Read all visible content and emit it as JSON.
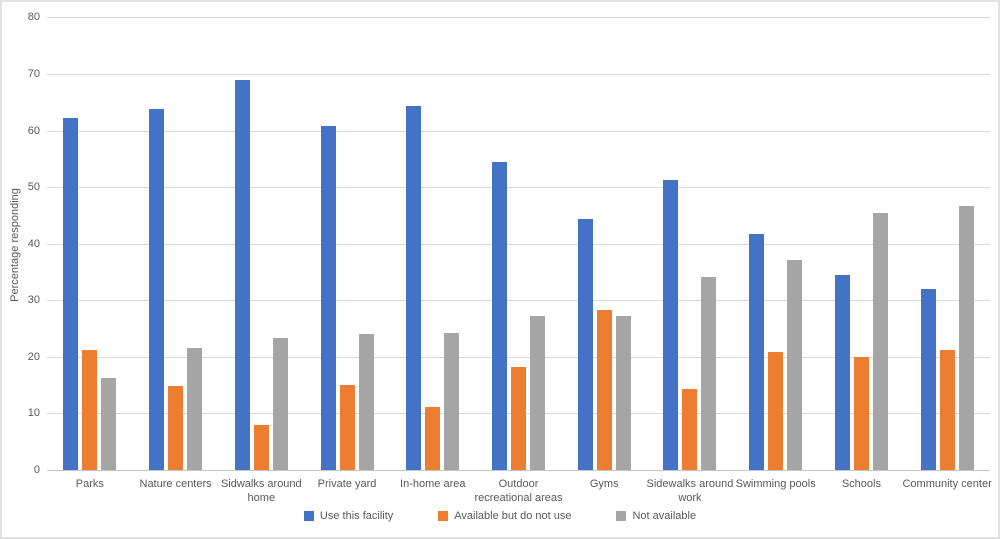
{
  "chart_data": {
    "type": "bar",
    "title": "",
    "ylabel": "Percentage responding",
    "xlabel": "",
    "ylim": [
      0,
      80
    ],
    "yticks": [
      0,
      10,
      20,
      30,
      40,
      50,
      60,
      70,
      80
    ],
    "grid": "horizontal",
    "legend_position": "bottom",
    "categories": [
      "Parks",
      "Nature centers",
      "Sidwalks around home",
      "Private yard",
      "In-home area",
      "Outdoor recreational areas",
      "Gyms",
      "Sidewalks around work",
      "Swimming pools",
      "Schools",
      "Community center"
    ],
    "series": [
      {
        "name": "Use this facility",
        "color": "#4472C4",
        "values": [
          62.3,
          63.8,
          68.9,
          60.8,
          64.4,
          54.5,
          44.3,
          51.3,
          41.7,
          34.4,
          32.0
        ]
      },
      {
        "name": "Available but do not use",
        "color": "#ED7D31",
        "values": [
          21.2,
          14.8,
          7.9,
          15.1,
          11.1,
          18.2,
          28.2,
          14.3,
          20.9,
          20.0,
          21.2
        ]
      },
      {
        "name": "Not available",
        "color": "#A5A5A5",
        "values": [
          16.3,
          21.6,
          23.3,
          24.0,
          24.3,
          27.2,
          27.2,
          34.1,
          37.1,
          45.4,
          46.6
        ]
      }
    ]
  },
  "colors": {
    "grid": "#d9d9d9",
    "axis_text": "#595959",
    "frame_border": "#e2e2e2"
  }
}
